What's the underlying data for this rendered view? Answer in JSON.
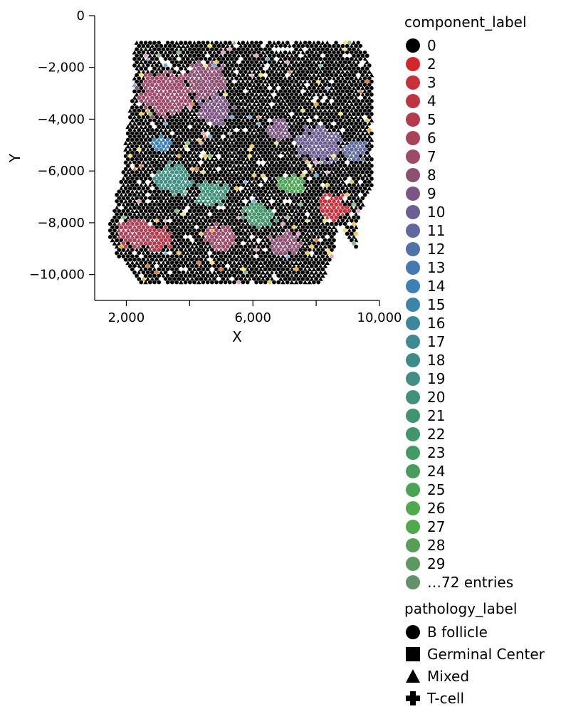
{
  "chart_data": {
    "type": "scatter",
    "xlabel": "X",
    "ylabel": "Y",
    "xlim": [
      1000,
      10000
    ],
    "ylim": [
      -11000,
      0
    ],
    "x_ticks": [
      {
        "value": 2000,
        "label": "2,000"
      },
      {
        "value": 4000,
        "label": ""
      },
      {
        "value": 6000,
        "label": "6,000"
      },
      {
        "value": 8000,
        "label": ""
      },
      {
        "value": 10000,
        "label": "10,000"
      }
    ],
    "y_ticks": [
      {
        "value": 0,
        "label": "0"
      },
      {
        "value": -2000,
        "label": "−2,000"
      },
      {
        "value": -4000,
        "label": "−4,000"
      },
      {
        "value": -6000,
        "label": "−6,000"
      },
      {
        "value": -8000,
        "label": "−8,000"
      },
      {
        "value": -10000,
        "label": "−10,000"
      }
    ],
    "grid": false,
    "legend_position": "right",
    "color_legend": {
      "title": "component_label",
      "entries": [
        {
          "label": "0",
          "color": "#000000"
        },
        {
          "label": "2",
          "color": "#d62728"
        },
        {
          "label": "3",
          "color": "#c8303c"
        },
        {
          "label": "4",
          "color": "#bf3443"
        },
        {
          "label": "5",
          "color": "#b43a4d"
        },
        {
          "label": "6",
          "color": "#a9435a"
        },
        {
          "label": "7",
          "color": "#9d4a6a"
        },
        {
          "label": "8",
          "color": "#8d4f72"
        },
        {
          "label": "9",
          "color": "#7c5585"
        },
        {
          "label": "10",
          "color": "#6c5d93"
        },
        {
          "label": "11",
          "color": "#5e6a9d"
        },
        {
          "label": "12",
          "color": "#4f72a8"
        },
        {
          "label": "13",
          "color": "#4479b2"
        },
        {
          "label": "14",
          "color": "#3d80b5"
        },
        {
          "label": "15",
          "color": "#3c84a8"
        },
        {
          "label": "16",
          "color": "#3c879c"
        },
        {
          "label": "17",
          "color": "#3d8a92"
        },
        {
          "label": "18",
          "color": "#3e8c8a"
        },
        {
          "label": "19",
          "color": "#408f82"
        },
        {
          "label": "20",
          "color": "#40917a"
        },
        {
          "label": "21",
          "color": "#409474"
        },
        {
          "label": "22",
          "color": "#42966c"
        },
        {
          "label": "23",
          "color": "#449a64"
        },
        {
          "label": "24",
          "color": "#469d5c"
        },
        {
          "label": "25",
          "color": "#49a454"
        },
        {
          "label": "26",
          "color": "#4caa4d"
        },
        {
          "label": "27",
          "color": "#50a94c"
        },
        {
          "label": "28",
          "color": "#589e57"
        },
        {
          "label": "29",
          "color": "#5c9860"
        },
        {
          "label": "…72 entries",
          "color": "#659168"
        }
      ]
    },
    "shape_legend": {
      "title": "pathology_label",
      "entries": [
        {
          "label": "B follicle",
          "shape": "circle"
        },
        {
          "label": "Germinal Center",
          "shape": "square"
        },
        {
          "label": "Mixed",
          "shape": "triangle"
        },
        {
          "label": "T-cell",
          "shape": "cross"
        }
      ]
    },
    "tissue_extent": {
      "x_range": [
        1400,
        9800
      ],
      "y_range": [
        -10300,
        -1000
      ]
    },
    "point_count_description": "dense hexagonal grid of spots covering the tissue section"
  }
}
